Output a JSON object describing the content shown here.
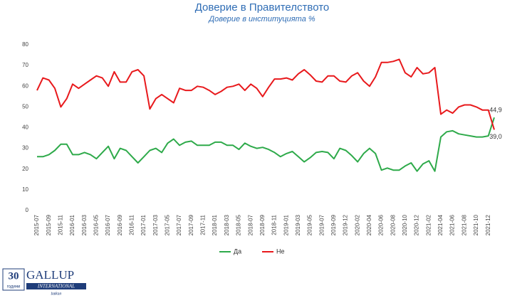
{
  "chart_data": {
    "type": "line",
    "title": "Доверие в Правителството",
    "subtitle": "Доверие в институцията %",
    "categories": [
      "2015-07",
      null,
      "2015-09",
      null,
      "2015-11",
      null,
      "2016-01",
      null,
      "2016-03",
      null,
      "2016-05",
      null,
      "2016-07",
      null,
      "2016-09",
      null,
      "2016-11",
      null,
      "2017-01",
      null,
      "2017-03",
      null,
      "2017-05",
      null,
      "2017-07",
      null,
      "2017-09",
      null,
      "2017-11",
      null,
      "2018-01",
      null,
      "2018-03",
      null,
      "2018-05",
      null,
      "2018-07",
      null,
      "2018-09",
      null,
      "2018-11",
      null,
      "2019-01",
      null,
      "2019-03",
      null,
      "2019-05",
      null,
      "2019-07",
      null,
      "2019-09",
      null,
      "2019-12",
      null,
      "2020-02",
      null,
      "2020-04",
      null,
      "2020-06",
      null,
      "2020-08",
      null,
      "2020-10",
      null,
      "2020-12",
      null,
      "2021-02",
      null,
      "2021-04",
      null,
      "2021-06",
      null,
      "2021-08",
      null,
      "2021-10",
      null,
      "2021-12",
      null
    ],
    "series": [
      {
        "name": "Да",
        "color": "#2eaa4a",
        "values": [
          26,
          26,
          27,
          29,
          32,
          32,
          27,
          27,
          28,
          27,
          25,
          28,
          31,
          25,
          30,
          29,
          26,
          23,
          26,
          29,
          30,
          28,
          32.5,
          34.5,
          31.5,
          33,
          33.5,
          31.5,
          31.5,
          31.5,
          33,
          33,
          31.5,
          31.5,
          29.5,
          32.5,
          31,
          30,
          30.5,
          29.5,
          28,
          26,
          27.5,
          28.5,
          26,
          23.5,
          25.5,
          28,
          28.5,
          28,
          25,
          30,
          29,
          26.5,
          23.5,
          27.5,
          30,
          27.5,
          19.5,
          20.5,
          19.5,
          19.5,
          21.5,
          23,
          19,
          22.5,
          24,
          19,
          35.5,
          38,
          38.5,
          37,
          36.5,
          36,
          35.5,
          35.5,
          36,
          44.9
        ],
        "value_labels": {
          "77": "44,9"
        }
      },
      {
        "name": "Не",
        "color": "#e8191c",
        "values": [
          58,
          64,
          63,
          59,
          50,
          54,
          61,
          59,
          61,
          63,
          65,
          64,
          60,
          67,
          62,
          62,
          67,
          68,
          65,
          49,
          54,
          56,
          54,
          52,
          59,
          58,
          58,
          60,
          59.5,
          58,
          56,
          57.5,
          59.5,
          60,
          61,
          58,
          61,
          59,
          55,
          59.5,
          63.5,
          63.5,
          64,
          63,
          66,
          68,
          65.5,
          62.5,
          62,
          65,
          65,
          62.5,
          62,
          65,
          66.5,
          62.5,
          60,
          64.5,
          71.5,
          71.5,
          72,
          73,
          66.5,
          64.5,
          69,
          66,
          66.5,
          69,
          46.5,
          48.5,
          47,
          50,
          51,
          51,
          50,
          48.5,
          48.5,
          39.0
        ],
        "value_labels": {
          "77": "39,0"
        }
      }
    ],
    "ylim": [
      0,
      80
    ],
    "yticks": [
      0,
      10,
      20,
      30,
      40,
      50,
      60,
      70,
      80
    ],
    "grid": false,
    "legend": "bottom"
  },
  "logo": {
    "number": "30",
    "caption": "години",
    "name": "GALLUP",
    "sub": "INTERNATIONAL",
    "region": "balkan"
  }
}
